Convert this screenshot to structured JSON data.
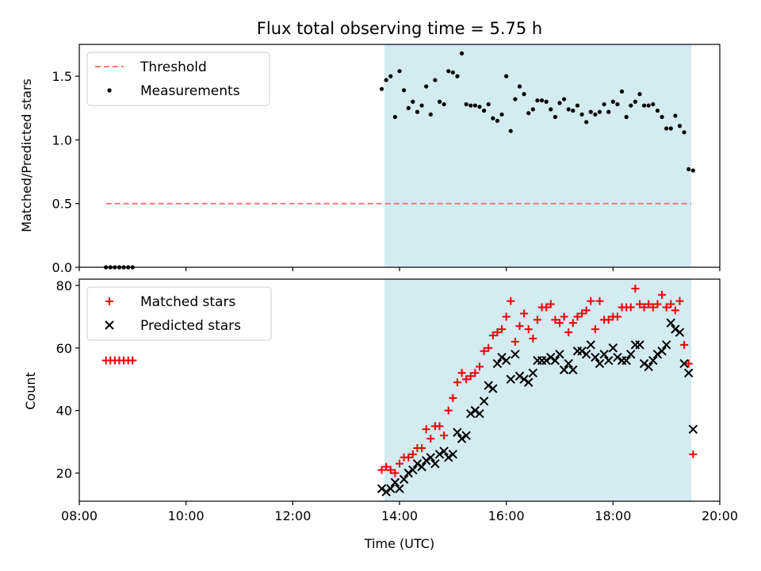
{
  "chart_data": [
    {
      "type": "scatter",
      "title": "Flux total observing time = 5.75 h",
      "ylabel": "Matched/Predicted stars",
      "xlabel": "",
      "ylim": [
        0,
        1.75
      ],
      "yticks": [
        0.0,
        0.5,
        1.0,
        1.5
      ],
      "ytick_labels": [
        "0.0",
        "0.5",
        "1.0",
        "1.5"
      ],
      "legend_position": "top-left",
      "shaded_range": [
        "13:43",
        "19:28"
      ],
      "shade_color": "#d4ebf2",
      "series": [
        {
          "name": "Threshold",
          "kind": "dashed-line",
          "color": "#f07a7a",
          "x": [
            "08:30",
            "19:28"
          ],
          "y": [
            0.5,
            0.5
          ]
        },
        {
          "name": "Measurements",
          "kind": "points",
          "color": "#000000",
          "x": [
            "08:30",
            "08:35",
            "08:40",
            "08:45",
            "08:50",
            "08:55",
            "09:00",
            "13:40",
            "13:45",
            "13:50",
            "13:55",
            "14:00",
            "14:05",
            "14:10",
            "14:15",
            "14:20",
            "14:25",
            "14:30",
            "14:35",
            "14:40",
            "14:45",
            "14:50",
            "14:55",
            "15:00",
            "15:05",
            "15:10",
            "15:15",
            "15:20",
            "15:25",
            "15:30",
            "15:35",
            "15:40",
            "15:45",
            "15:50",
            "15:55",
            "16:00",
            "16:05",
            "16:10",
            "16:15",
            "16:20",
            "16:25",
            "16:30",
            "16:35",
            "16:40",
            "16:45",
            "16:50",
            "16:55",
            "17:00",
            "17:05",
            "17:10",
            "17:15",
            "17:20",
            "17:25",
            "17:30",
            "17:35",
            "17:40",
            "17:45",
            "17:50",
            "17:55",
            "18:00",
            "18:05",
            "18:10",
            "18:15",
            "18:20",
            "18:25",
            "18:30",
            "18:35",
            "18:40",
            "18:45",
            "18:50",
            "18:55",
            "19:00",
            "19:05",
            "19:10",
            "19:15",
            "19:20",
            "19:25",
            "19:30"
          ],
          "y": [
            0,
            0,
            0,
            0,
            0,
            0,
            0,
            1.4,
            1.47,
            1.5,
            1.18,
            1.54,
            1.39,
            1.25,
            1.3,
            1.22,
            1.27,
            1.42,
            1.2,
            1.47,
            1.3,
            1.28,
            1.54,
            1.53,
            1.5,
            1.68,
            1.28,
            1.27,
            1.27,
            1.26,
            1.23,
            1.28,
            1.17,
            1.15,
            1.2,
            1.5,
            1.07,
            1.32,
            1.42,
            1.36,
            1.21,
            1.24,
            1.31,
            1.31,
            1.3,
            1.24,
            1.18,
            1.29,
            1.32,
            1.24,
            1.23,
            1.27,
            1.2,
            1.14,
            1.22,
            1.2,
            1.22,
            1.28,
            1.22,
            1.3,
            1.28,
            1.38,
            1.18,
            1.27,
            1.3,
            1.36,
            1.27,
            1.27,
            1.28,
            1.23,
            1.18,
            1.09,
            1.09,
            1.19,
            1.11,
            1.06,
            0.77,
            0.76
          ]
        }
      ]
    },
    {
      "type": "scatter",
      "title": "",
      "xlabel": "Time (UTC)",
      "ylabel": "Count",
      "ylim": [
        11,
        82
      ],
      "yticks": [
        20,
        40,
        60,
        80
      ],
      "ytick_labels": [
        "20",
        "40",
        "60",
        "80"
      ],
      "xticks": [
        "08:00",
        "10:00",
        "12:00",
        "14:00",
        "16:00",
        "18:00",
        "20:00"
      ],
      "legend_position": "top-left",
      "shaded_range": [
        "13:43",
        "19:28"
      ],
      "shade_color": "#d4ebf2",
      "series": [
        {
          "name": "Matched stars",
          "kind": "plus",
          "color": "#ee0000",
          "x": [
            "08:30",
            "08:35",
            "08:40",
            "08:45",
            "08:50",
            "08:55",
            "09:00",
            "13:40",
            "13:45",
            "13:50",
            "13:55",
            "14:00",
            "14:05",
            "14:10",
            "14:15",
            "14:20",
            "14:25",
            "14:30",
            "14:35",
            "14:40",
            "14:45",
            "14:50",
            "14:55",
            "15:00",
            "15:05",
            "15:10",
            "15:15",
            "15:20",
            "15:25",
            "15:30",
            "15:35",
            "15:40",
            "15:45",
            "15:50",
            "15:55",
            "16:00",
            "16:05",
            "16:10",
            "16:15",
            "16:20",
            "16:25",
            "16:30",
            "16:35",
            "16:40",
            "16:45",
            "16:50",
            "16:55",
            "17:00",
            "17:05",
            "17:10",
            "17:15",
            "17:20",
            "17:25",
            "17:30",
            "17:35",
            "17:40",
            "17:45",
            "17:50",
            "17:55",
            "18:00",
            "18:05",
            "18:10",
            "18:15",
            "18:20",
            "18:25",
            "18:30",
            "18:35",
            "18:40",
            "18:45",
            "18:50",
            "18:55",
            "19:00",
            "19:05",
            "19:10",
            "19:15",
            "19:20",
            "19:25",
            "19:30"
          ],
          "y": [
            56,
            56,
            56,
            56,
            56,
            56,
            56,
            21,
            22,
            21,
            20,
            23,
            25,
            25,
            26,
            28,
            28,
            34,
            31,
            35,
            35,
            32,
            40,
            44,
            49,
            52,
            50,
            51,
            52,
            54,
            59,
            60,
            64,
            65,
            66,
            70,
            75,
            62,
            67,
            71,
            66,
            63,
            69,
            73,
            73,
            74,
            69,
            68,
            70,
            65,
            68,
            70,
            71,
            72,
            75,
            66,
            75,
            69,
            69,
            70,
            70,
            73,
            73,
            73,
            79,
            74,
            73,
            74,
            73,
            74,
            77,
            73,
            74,
            72,
            75,
            61,
            55,
            26
          ]
        },
        {
          "name": "Predicted stars",
          "kind": "cross",
          "color": "#000000",
          "x": [
            "13:40",
            "13:45",
            "13:50",
            "13:55",
            "14:00",
            "14:05",
            "14:10",
            "14:15",
            "14:20",
            "14:25",
            "14:30",
            "14:35",
            "14:40",
            "14:45",
            "14:50",
            "14:55",
            "15:00",
            "15:05",
            "15:10",
            "15:15",
            "15:20",
            "15:25",
            "15:30",
            "15:35",
            "15:40",
            "15:45",
            "15:50",
            "15:55",
            "16:00",
            "16:05",
            "16:10",
            "16:15",
            "16:20",
            "16:25",
            "16:30",
            "16:35",
            "16:40",
            "16:45",
            "16:50",
            "16:55",
            "17:00",
            "17:05",
            "17:10",
            "17:15",
            "17:20",
            "17:25",
            "17:30",
            "17:35",
            "17:40",
            "17:45",
            "17:50",
            "17:55",
            "18:00",
            "18:05",
            "18:10",
            "18:15",
            "18:20",
            "18:25",
            "18:30",
            "18:35",
            "18:40",
            "18:45",
            "18:50",
            "18:55",
            "19:00",
            "19:05",
            "19:10",
            "19:15",
            "19:20",
            "19:25",
            "19:30"
          ],
          "y": [
            15,
            14,
            15,
            17,
            15,
            18,
            20,
            21,
            23,
            22,
            24,
            25,
            23,
            26,
            27,
            25,
            26,
            33,
            31,
            32,
            39,
            40,
            39,
            43,
            48,
            47,
            55,
            57,
            56,
            50,
            58,
            51,
            50,
            49,
            52,
            56,
            56,
            56,
            57,
            56,
            58,
            53,
            55,
            53,
            59,
            59,
            58,
            61,
            57,
            55,
            58,
            56,
            60,
            57,
            56,
            56,
            58,
            61,
            61,
            55,
            54,
            56,
            58,
            59,
            61,
            68,
            66,
            65,
            55,
            52,
            34
          ]
        }
      ]
    }
  ]
}
